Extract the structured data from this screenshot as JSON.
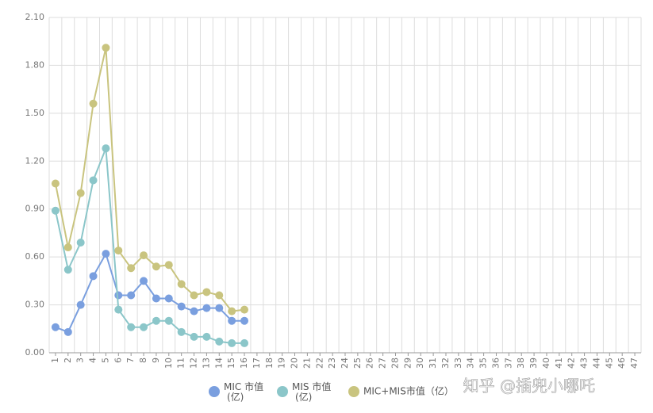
{
  "chart_data": {
    "type": "line",
    "categories": [
      "1",
      "2",
      "3",
      "4",
      "5",
      "6",
      "7",
      "8",
      "9",
      "10",
      "11",
      "12",
      "13",
      "14",
      "15",
      "16",
      "17",
      "18",
      "19",
      "20",
      "21",
      "22",
      "23",
      "24",
      "25",
      "26",
      "27",
      "28",
      "29",
      "30",
      "31",
      "32",
      "33",
      "34",
      "35",
      "36",
      "37",
      "38",
      "39",
      "40",
      "41",
      "42",
      "43",
      "44",
      "45",
      "46",
      "47"
    ],
    "series": [
      {
        "name": "MIC 市值\n(亿)",
        "color": "#7a9fdf",
        "values": [
          0.16,
          0.13,
          0.3,
          0.48,
          0.62,
          0.36,
          0.36,
          0.45,
          0.34,
          0.34,
          0.29,
          0.26,
          0.28,
          0.28,
          0.2,
          0.2,
          null,
          null,
          null,
          null,
          null,
          null,
          null,
          null,
          null,
          null,
          null,
          null,
          null,
          null,
          null,
          null,
          null,
          null,
          null,
          null,
          null,
          null,
          null,
          null,
          null,
          null,
          null,
          null,
          null,
          null,
          null
        ]
      },
      {
        "name": "MIS 市值\n(亿)",
        "color": "#8bc6c9",
        "values": [
          0.89,
          0.52,
          0.69,
          1.08,
          1.28,
          0.27,
          0.16,
          0.16,
          0.2,
          0.2,
          0.13,
          0.1,
          0.1,
          0.07,
          0.06,
          0.06,
          null,
          null,
          null,
          null,
          null,
          null,
          null,
          null,
          null,
          null,
          null,
          null,
          null,
          null,
          null,
          null,
          null,
          null,
          null,
          null,
          null,
          null,
          null,
          null,
          null,
          null,
          null,
          null,
          null,
          null,
          null
        ]
      },
      {
        "name": "MIC+MIS市值（亿）",
        "color": "#c9c47f",
        "values": [
          1.06,
          0.66,
          1.0,
          1.56,
          1.91,
          0.64,
          0.53,
          0.61,
          0.54,
          0.55,
          0.43,
          0.36,
          0.38,
          0.36,
          0.26,
          0.27,
          null,
          null,
          null,
          null,
          null,
          null,
          null,
          null,
          null,
          null,
          null,
          null,
          null,
          null,
          null,
          null,
          null,
          null,
          null,
          null,
          null,
          null,
          null,
          null,
          null,
          null,
          null,
          null,
          null,
          null,
          null
        ]
      }
    ],
    "ylim": [
      0,
      2.1
    ],
    "yticks": [
      {
        "value": 0,
        "label": "0.00"
      },
      {
        "value": 0.3,
        "label": "0.30"
      },
      {
        "value": 0.6,
        "label": "0.60"
      },
      {
        "value": 0.9,
        "label": "0.90"
      },
      {
        "value": 1.2,
        "label": "1.20"
      },
      {
        "value": 1.5,
        "label": "1.50"
      },
      {
        "value": 1.8,
        "label": "1.80"
      },
      {
        "value": 2.1,
        "label": "2.10"
      }
    ],
    "grid": true,
    "legend": "bottom",
    "watermark": "知乎 @插兜小哪吒"
  }
}
